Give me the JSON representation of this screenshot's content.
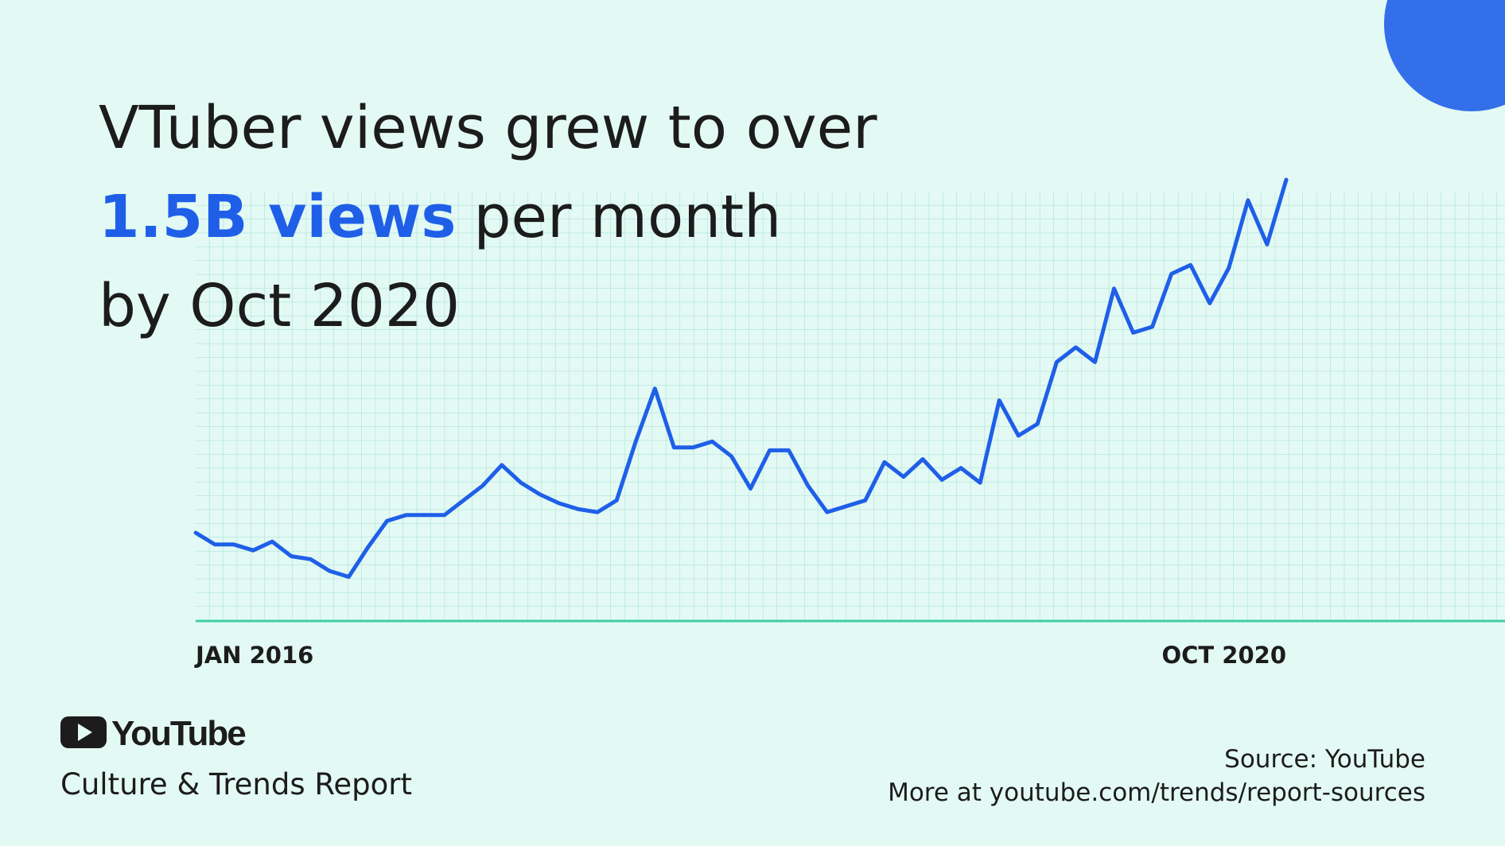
{
  "chart_data": {
    "type": "line",
    "title": {
      "line1": "VTuber views grew to over",
      "highlight": "1.5B views",
      "line2": "per month",
      "line3": "by Oct 2020"
    },
    "categories": [
      "JAN 2016",
      null,
      null,
      null,
      null,
      null,
      null,
      null,
      null,
      null,
      null,
      null,
      null,
      null,
      null,
      null,
      null,
      null,
      null,
      null,
      null,
      null,
      null,
      null,
      null,
      null,
      null,
      null,
      null,
      null,
      null,
      null,
      null,
      null,
      null,
      null,
      null,
      null,
      null,
      null,
      null,
      null,
      null,
      null,
      null,
      null,
      null,
      null,
      null,
      null,
      null,
      null,
      null,
      null,
      null,
      null,
      null,
      "OCT 2020"
    ],
    "values": [
      0.3,
      0.26,
      0.26,
      0.24,
      0.27,
      0.22,
      0.21,
      0.17,
      0.15,
      0.25,
      0.34,
      0.36,
      0.36,
      0.36,
      0.41,
      0.46,
      0.53,
      0.47,
      0.43,
      0.4,
      0.38,
      0.37,
      0.41,
      0.61,
      0.79,
      0.59,
      0.59,
      0.61,
      0.56,
      0.45,
      0.58,
      0.58,
      0.46,
      0.37,
      0.39,
      0.41,
      0.54,
      0.49,
      0.55,
      0.48,
      0.52,
      0.47,
      0.75,
      0.63,
      0.67,
      0.88,
      0.93,
      0.88,
      1.13,
      0.98,
      1.0,
      1.18,
      1.21,
      1.08,
      1.2,
      1.43,
      1.28,
      1.5
    ],
    "color": "#1f5fe8",
    "ylim": [
      0,
      1.5
    ],
    "grid": true
  },
  "footer": {
    "logo": "YouTube",
    "report": "Culture & Trends Report",
    "source": "Source: YouTube",
    "more": "More at youtube.com/trends/report-sources"
  }
}
